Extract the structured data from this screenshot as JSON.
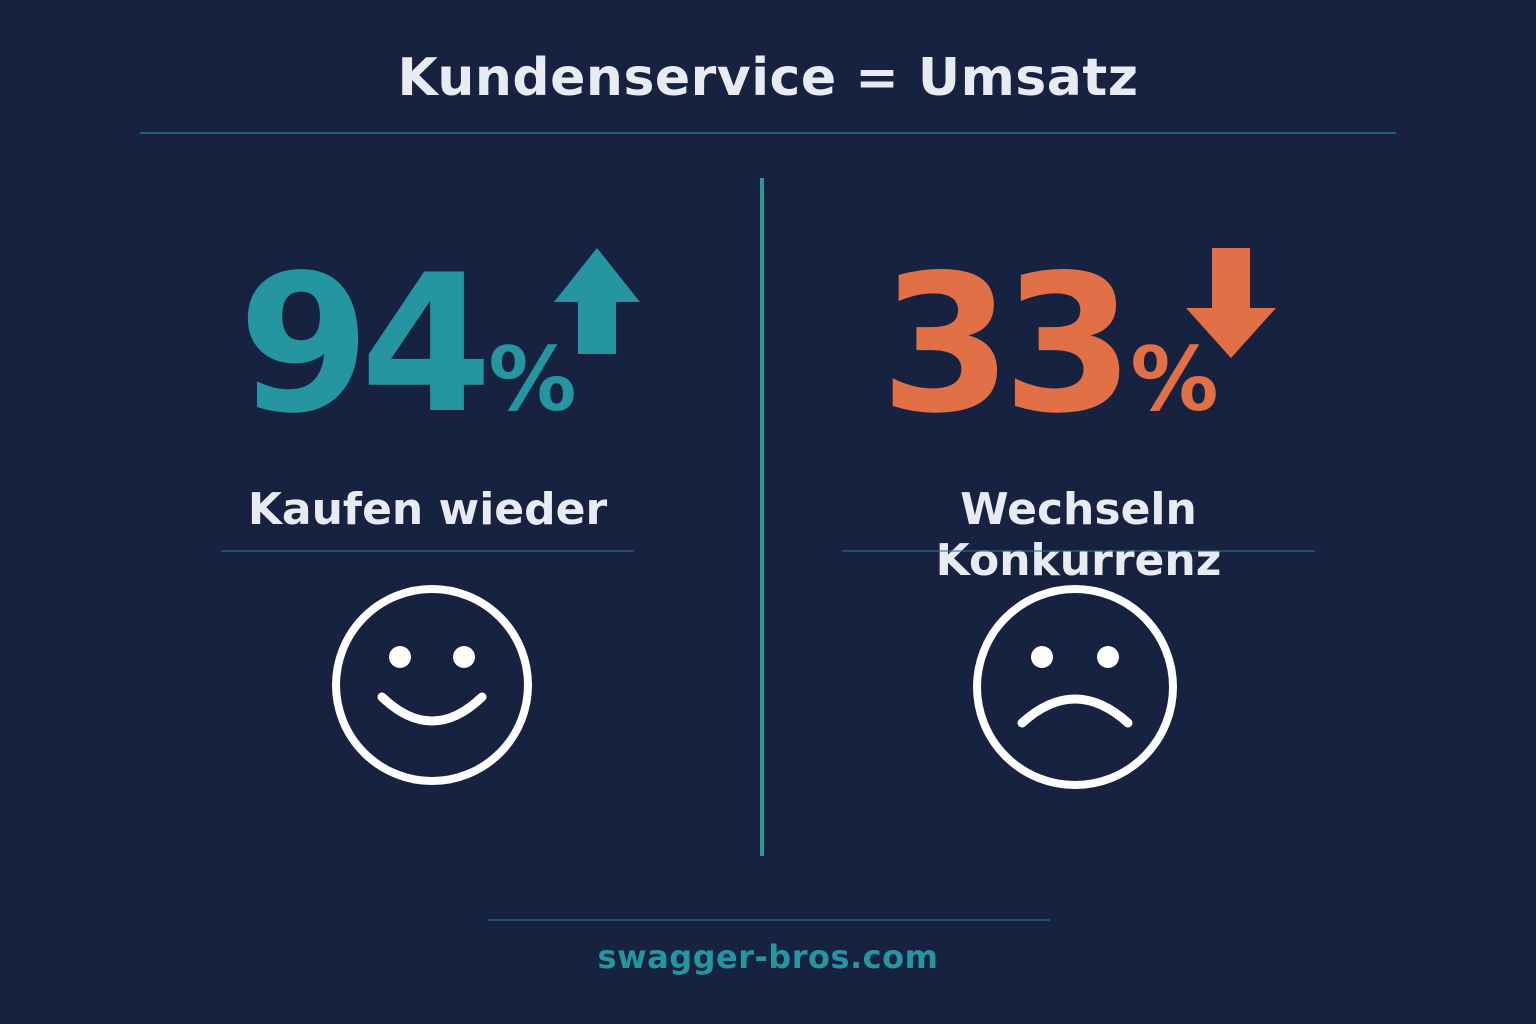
{
  "header": {
    "title": "Kundenservice = Umsatz"
  },
  "left_panel": {
    "value": "94",
    "unit": "%",
    "label": "Kaufen wieder",
    "trend_icon": "arrow-up-icon",
    "face_icon": "happy-face-icon",
    "accent_color": "#2596A0"
  },
  "right_panel": {
    "value": "33",
    "unit": "%",
    "label": "Wechseln Konkurrenz",
    "trend_icon": "arrow-down-icon",
    "face_icon": "sad-face-icon",
    "accent_color": "#E27047"
  },
  "footer": {
    "website": "swagger-bros.com"
  },
  "colors": {
    "background": "#172240",
    "text": "#E8ECF2",
    "divider": "#2A97A5"
  }
}
